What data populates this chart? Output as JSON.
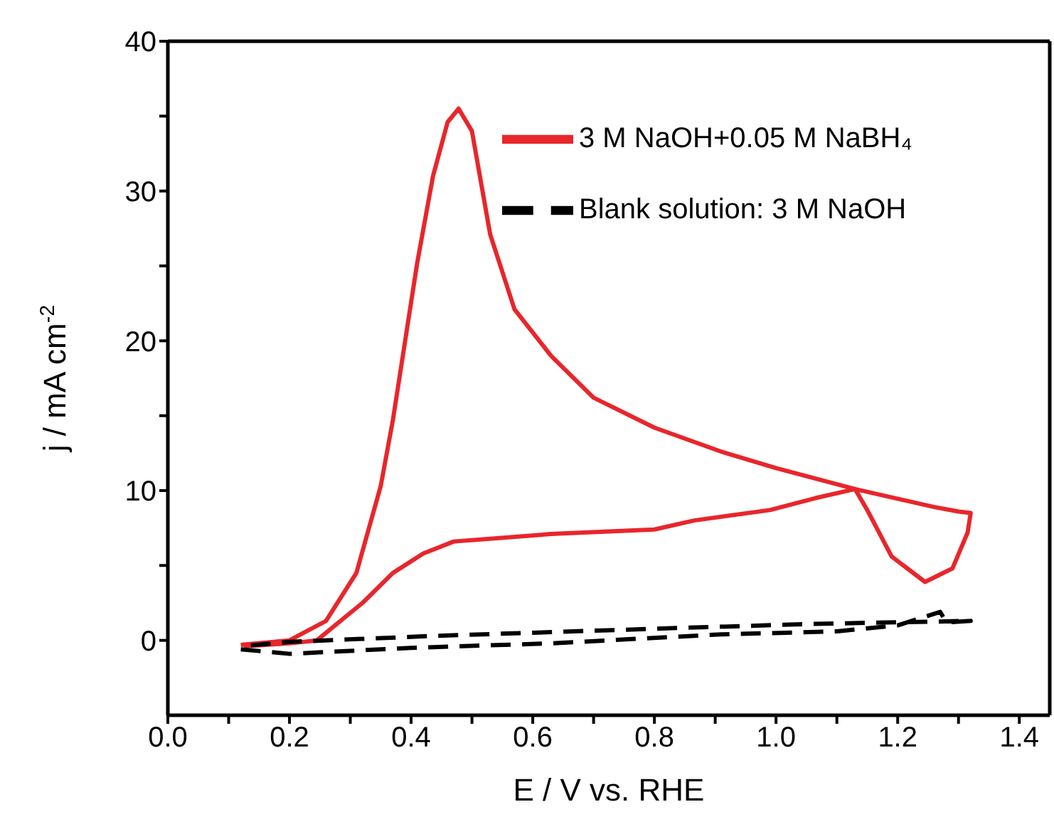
{
  "chart_data": {
    "type": "line",
    "xlabel": "E / V vs. RHE",
    "ylabel": "j / mA cm$^{-2}$",
    "xlim": [
      0,
      1.45
    ],
    "ylim": [
      -5,
      40
    ],
    "xticks": [
      {
        "value": 0,
        "label": "0.0"
      },
      {
        "value": 0.1,
        "label": null
      },
      {
        "value": 0.2,
        "label": "0.2"
      },
      {
        "value": 0.3,
        "label": null
      },
      {
        "value": 0.4,
        "label": "0.4"
      },
      {
        "value": 0.5,
        "label": null
      },
      {
        "value": 0.6,
        "label": "0.6"
      },
      {
        "value": 0.7,
        "label": null
      },
      {
        "value": 0.8,
        "label": "0.8"
      },
      {
        "value": 0.9,
        "label": null
      },
      {
        "value": 1.0,
        "label": "1.0"
      },
      {
        "value": 1.1,
        "label": null
      },
      {
        "value": 1.2,
        "label": "1.2"
      },
      {
        "value": 1.3,
        "label": null
      },
      {
        "value": 1.4,
        "label": "1.4"
      }
    ],
    "yticks": [
      0,
      {
        "value": 5,
        "label": null
      },
      10,
      {
        "value": 15,
        "label": null
      },
      20,
      {
        "value": 25,
        "label": null
      },
      30,
      {
        "value": 35,
        "label": null
      },
      40
    ],
    "legend": "top right",
    "marker": "none",
    "series": [
      {
        "name": "3 M NaOH+0.05 M NaBH₄",
        "color": "#e8262b",
        "line_style": "solid",
        "x": [
          0.12,
          0.2,
          0.26,
          0.31,
          0.35,
          0.37,
          0.41,
          0.436,
          0.46,
          0.478,
          0.5,
          0.53,
          0.57,
          0.63,
          0.7,
          0.8,
          0.91,
          1.0,
          1.13,
          1.26,
          1.3,
          1.32,
          1.315,
          1.29,
          1.245,
          1.19,
          1.15,
          1.13,
          1.065,
          0.99,
          0.865,
          0.8,
          0.63,
          0.47,
          0.42,
          0.37,
          0.32,
          0.245,
          0.2,
          0.125
        ],
        "values": [
          -0.3,
          0,
          1.3,
          4.5,
          10.3,
          14.7,
          25.2,
          31,
          34.6,
          35.5,
          34,
          27.1,
          22.1,
          19,
          16.2,
          14.2,
          12.6,
          11.5,
          10.1,
          8.9,
          8.6,
          8.5,
          7.2,
          4.8,
          3.9,
          5.6,
          8.7,
          10.1,
          9.5,
          8.7,
          8.0,
          7.4,
          7.1,
          6.6,
          5.8,
          4.5,
          2.5,
          0,
          -0.2,
          -0.4
        ]
      },
      {
        "name": "Blank solution: 3 M NaOH",
        "color": "#000000",
        "line_style": "dashed",
        "x": [
          0.12,
          0.2,
          0.4,
          0.63,
          0.91,
          1.1,
          1.2,
          1.27,
          1.28,
          1.32,
          1.06,
          0.82,
          0.44,
          0.2,
          0.12
        ],
        "values": [
          -0.6,
          -0.9,
          -0.5,
          -0.2,
          0.4,
          0.6,
          1.0,
          1.9,
          1.2,
          1.3,
          1.1,
          0.8,
          0.3,
          -0.1,
          -0.4
        ]
      }
    ]
  }
}
